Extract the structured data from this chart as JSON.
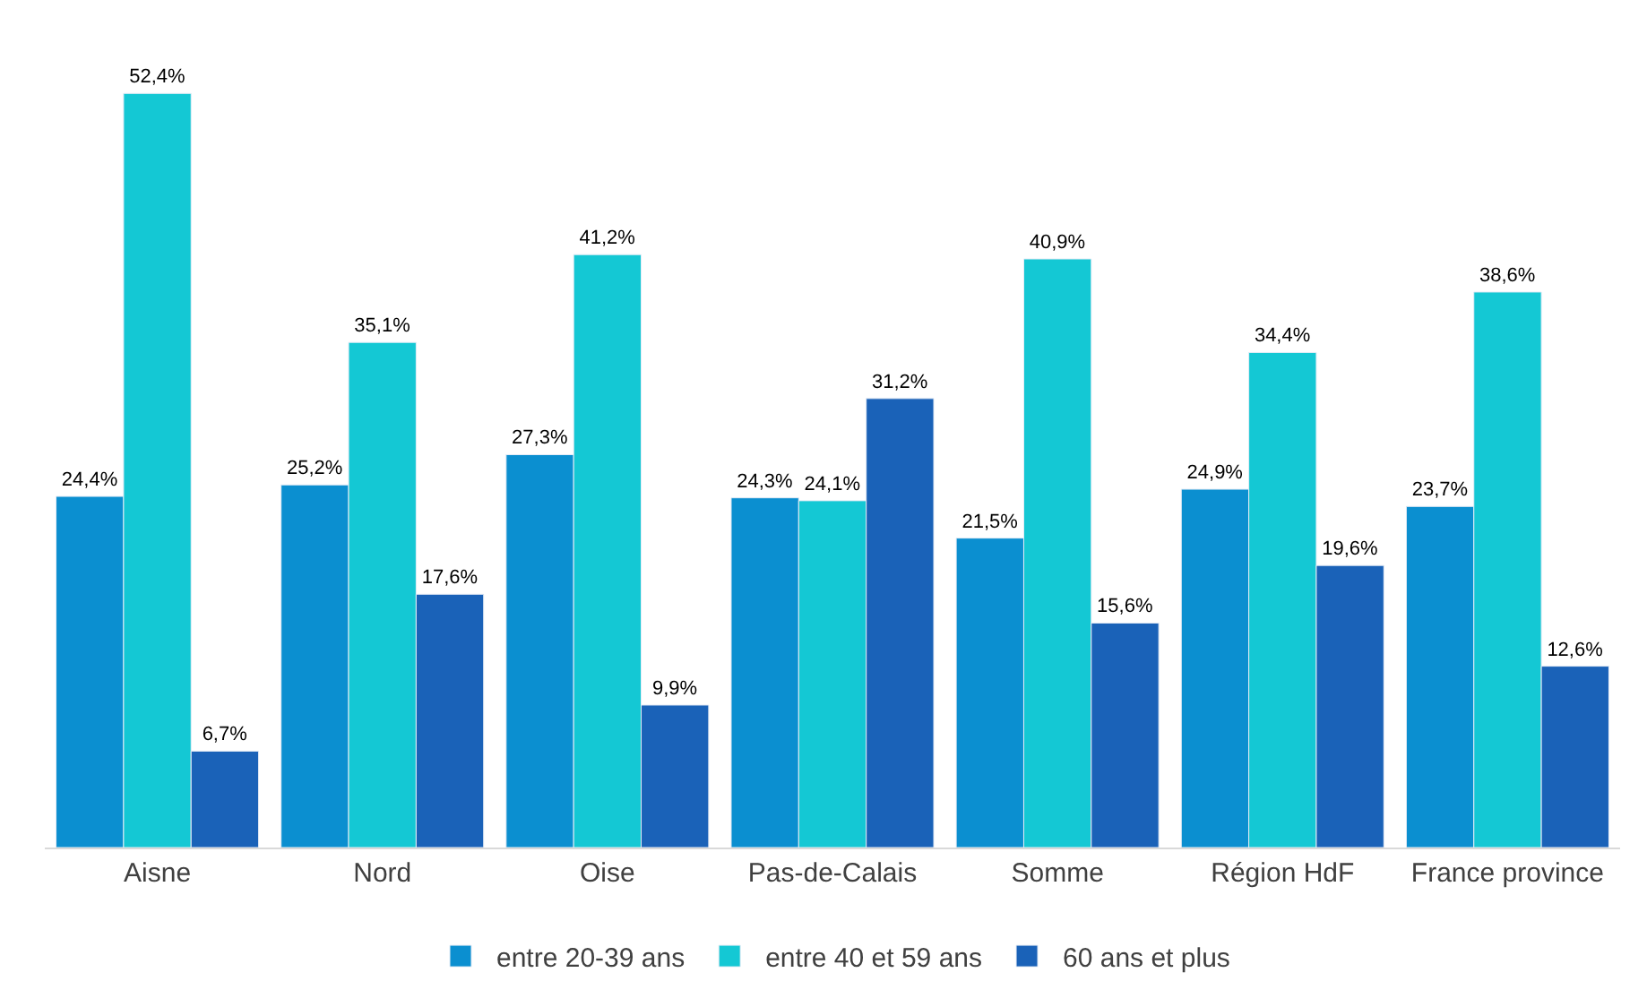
{
  "chart_data": {
    "type": "bar",
    "categories": [
      "Aisne",
      "Nord",
      "Oise",
      "Pas-de-Calais",
      "Somme",
      "Région HdF",
      "France province"
    ],
    "series": [
      {
        "name": "entre 20-39 ans",
        "color": "#0b8fd0",
        "values": [
          24.4,
          25.2,
          27.3,
          24.3,
          21.5,
          24.9,
          23.7
        ],
        "value_labels": [
          "24,4%",
          "25,2%",
          "27,3%",
          "24,3%",
          "21,5%",
          "24,9%",
          "23,7%"
        ]
      },
      {
        "name": "entre 40 et 59 ans",
        "color": "#14c8d4",
        "values": [
          52.4,
          35.1,
          41.2,
          24.1,
          40.9,
          34.4,
          38.6
        ],
        "value_labels": [
          "52,4%",
          "35,1%",
          "41,2%",
          "24,1%",
          "40,9%",
          "34,4%",
          "38,6%"
        ]
      },
      {
        "name": "60 ans et plus",
        "color": "#1a62b8",
        "values": [
          6.7,
          17.6,
          9.9,
          31.2,
          15.6,
          19.6,
          12.6
        ],
        "value_labels": [
          "6,7%",
          "17,6%",
          "9,9%",
          "31,2%",
          "15,6%",
          "19,6%",
          "12,6%"
        ]
      }
    ],
    "tick_labels": "x",
    "legend": "bottom"
  }
}
